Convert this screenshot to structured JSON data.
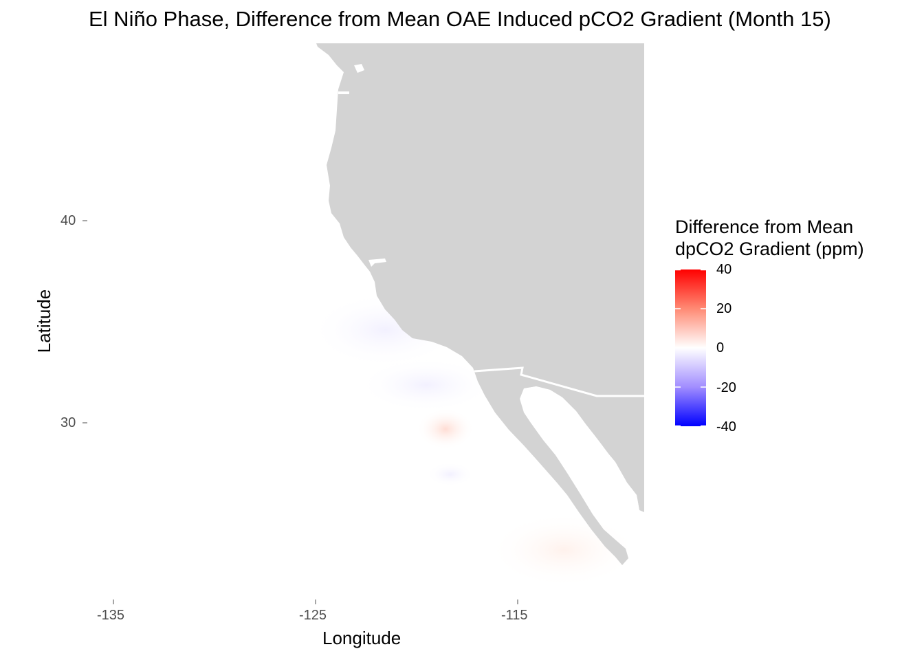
{
  "title": "El Niño Phase, Difference from Mean OAE Induced pCO2 Gradient (Month 15)",
  "x_axis": {
    "label": "Longitude",
    "ticks": [
      "-135",
      "-125",
      "-115"
    ]
  },
  "y_axis": {
    "label": "Latitude",
    "ticks": [
      "40",
      "30"
    ]
  },
  "legend": {
    "title_line1": "Difference from Mean",
    "title_line2": "dpCO2 Gradient (ppm)",
    "labels": [
      "40",
      "20",
      "0",
      "-20",
      "-40"
    ],
    "colors": {
      "high": "#ff0000",
      "mid": "#ffffff",
      "low": "#0000ff"
    }
  },
  "colors": {
    "land": "#d3d3d3",
    "border": "#ffffff",
    "ocean_background": "#ffffff"
  },
  "chart_data": {
    "type": "heatmap",
    "title": "El Niño Phase, Difference from Mean OAE Induced pCO2 Gradient (Month 15)",
    "xlabel": "Longitude",
    "ylabel": "Latitude",
    "x_ticks": [
      -135,
      -125,
      -115
    ],
    "y_ticks": [
      40,
      30
    ],
    "xlim": [
      -136,
      -109
    ],
    "ylim": [
      21.5,
      48.8
    ],
    "color_scale": {
      "min": -40,
      "mid": 0,
      "max": 40,
      "low_color": "#0000ff",
      "mid_color": "#ffffff",
      "high_color": "#ff0000"
    },
    "notable_anomalies": [
      {
        "lon": -119.5,
        "lat": 29.7,
        "value": 3
      },
      {
        "lon": -122,
        "lat": 35,
        "value": -2
      },
      {
        "lon": -113,
        "lat": 24,
        "value": 2
      }
    ]
  }
}
